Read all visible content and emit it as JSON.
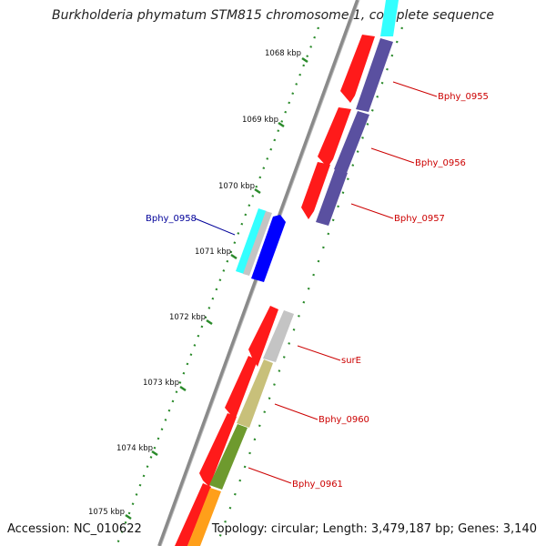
{
  "title": "Burkholderia phymatum STM815 chromosome 1, complete sequence",
  "accession": "Accession: NC_010622",
  "topology": "Topology: circular; Length: 3,479,187 bp; Genes: 3,140",
  "colors": {
    "backbone": "#8a8a8a",
    "scale_dots": "#2a8a2a",
    "forward_label": "#cc0000",
    "reverse_label": "#000099",
    "gene_red": "#ff1a1a",
    "gene_purple": "#5a50a0",
    "gene_cyan": "#33ffff",
    "gene_gray": "#c4c4c4",
    "gene_blue": "#0000ff",
    "gene_khaki": "#c8c07a",
    "gene_olive": "#6e9a2e",
    "gene_orange": "#ff9f1a"
  },
  "scale": [
    {
      "label": "1068 kbp"
    },
    {
      "label": "1069 kbp"
    },
    {
      "label": "1070 kbp"
    },
    {
      "label": "1071 kbp"
    },
    {
      "label": "1072 kbp"
    },
    {
      "label": "1073 kbp"
    },
    {
      "label": "1074 kbp"
    },
    {
      "label": "1075 kbp"
    }
  ],
  "gene_labels": [
    {
      "text": "Bphy_0955",
      "strand": "forward"
    },
    {
      "text": "Bphy_0956",
      "strand": "forward"
    },
    {
      "text": "Bphy_0957",
      "strand": "forward"
    },
    {
      "text": "Bphy_0958",
      "strand": "reverse"
    },
    {
      "text": "surE",
      "strand": "forward"
    },
    {
      "text": "Bphy_0960",
      "strand": "forward"
    },
    {
      "text": "Bphy_0961",
      "strand": "forward"
    }
  ]
}
